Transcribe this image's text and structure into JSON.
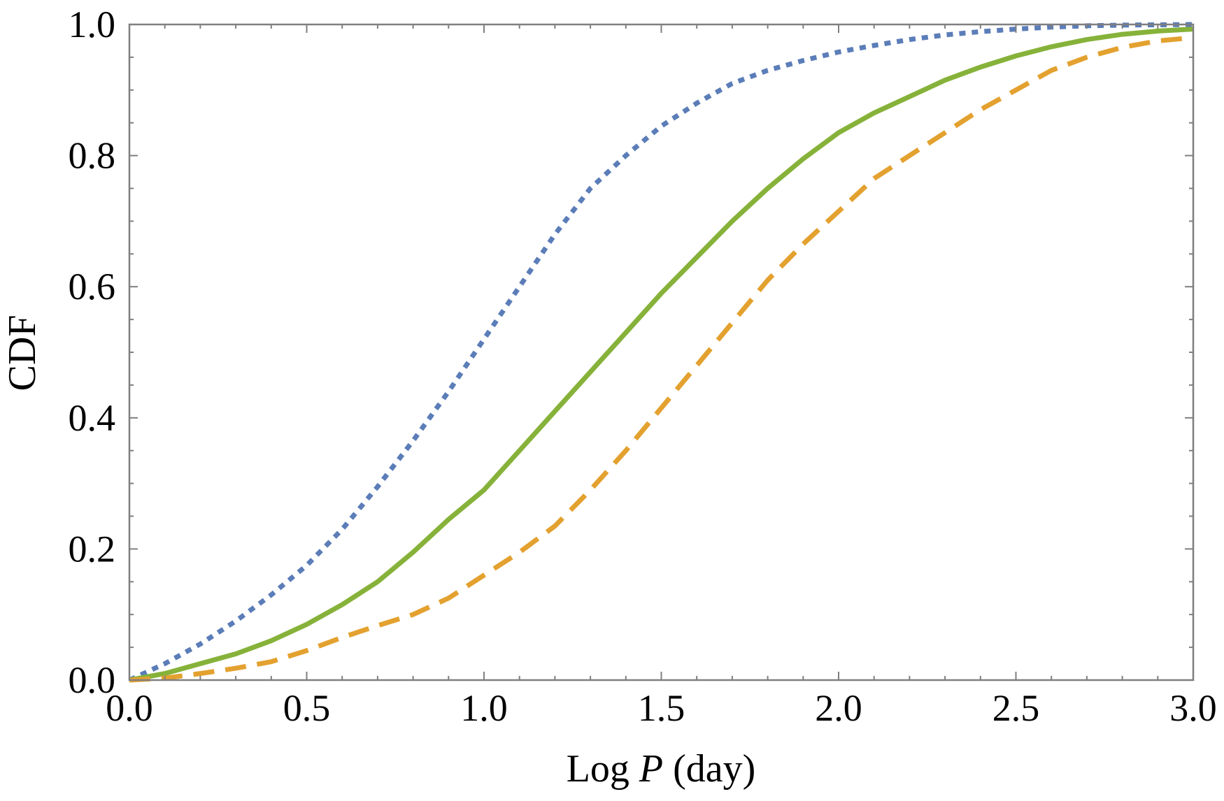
{
  "chart_data": {
    "type": "line",
    "title": "",
    "xlabel_prefix": "Log ",
    "xlabel_var": "P",
    "xlabel_suffix": " (day)",
    "ylabel": "CDF",
    "xlim": [
      0.0,
      3.0
    ],
    "ylim": [
      0.0,
      1.0
    ],
    "x_ticks": [
      "0.0",
      "0.5",
      "1.0",
      "1.5",
      "2.0",
      "2.5",
      "3.0"
    ],
    "y_ticks": [
      "0.0",
      "0.2",
      "0.4",
      "0.6",
      "0.8",
      "1.0"
    ],
    "grid": false,
    "series": [
      {
        "name": "dotted-blue",
        "color": "#5b7db8",
        "style": "dotted",
        "x": [
          0.0,
          0.1,
          0.2,
          0.3,
          0.4,
          0.5,
          0.6,
          0.7,
          0.8,
          0.9,
          1.0,
          1.1,
          1.2,
          1.3,
          1.4,
          1.5,
          1.6,
          1.7,
          1.8,
          1.9,
          2.0,
          2.1,
          2.2,
          2.3,
          2.4,
          2.5,
          2.6,
          2.7,
          2.8,
          2.9,
          3.0
        ],
        "y": [
          0.0,
          0.025,
          0.055,
          0.09,
          0.13,
          0.175,
          0.23,
          0.295,
          0.365,
          0.44,
          0.52,
          0.6,
          0.68,
          0.75,
          0.8,
          0.845,
          0.88,
          0.91,
          0.93,
          0.945,
          0.958,
          0.968,
          0.977,
          0.984,
          0.989,
          0.993,
          0.996,
          0.998,
          0.999,
          0.9995,
          1.0
        ]
      },
      {
        "name": "solid-green",
        "color": "#86b23a",
        "style": "solid",
        "x": [
          0.0,
          0.1,
          0.2,
          0.3,
          0.4,
          0.5,
          0.6,
          0.7,
          0.8,
          0.9,
          1.0,
          1.1,
          1.2,
          1.3,
          1.4,
          1.5,
          1.6,
          1.7,
          1.8,
          1.9,
          2.0,
          2.1,
          2.2,
          2.3,
          2.4,
          2.5,
          2.6,
          2.7,
          2.8,
          2.9,
          3.0
        ],
        "y": [
          0.0,
          0.01,
          0.025,
          0.04,
          0.06,
          0.085,
          0.115,
          0.15,
          0.195,
          0.245,
          0.29,
          0.35,
          0.41,
          0.47,
          0.53,
          0.59,
          0.645,
          0.7,
          0.75,
          0.795,
          0.835,
          0.865,
          0.89,
          0.915,
          0.935,
          0.952,
          0.966,
          0.977,
          0.985,
          0.99,
          0.993
        ]
      },
      {
        "name": "dashed-orange",
        "color": "#e3a12f",
        "style": "dashed",
        "x": [
          0.0,
          0.1,
          0.2,
          0.3,
          0.4,
          0.5,
          0.6,
          0.7,
          0.8,
          0.9,
          1.0,
          1.1,
          1.2,
          1.3,
          1.4,
          1.5,
          1.6,
          1.7,
          1.8,
          1.9,
          2.0,
          2.1,
          2.2,
          2.3,
          2.4,
          2.5,
          2.6,
          2.7,
          2.8,
          2.9,
          3.0
        ],
        "y": [
          0.0,
          0.003,
          0.01,
          0.018,
          0.028,
          0.045,
          0.065,
          0.083,
          0.1,
          0.125,
          0.16,
          0.195,
          0.235,
          0.29,
          0.35,
          0.415,
          0.48,
          0.545,
          0.61,
          0.665,
          0.715,
          0.765,
          0.8,
          0.835,
          0.87,
          0.9,
          0.93,
          0.95,
          0.965,
          0.975,
          0.98
        ]
      }
    ]
  }
}
